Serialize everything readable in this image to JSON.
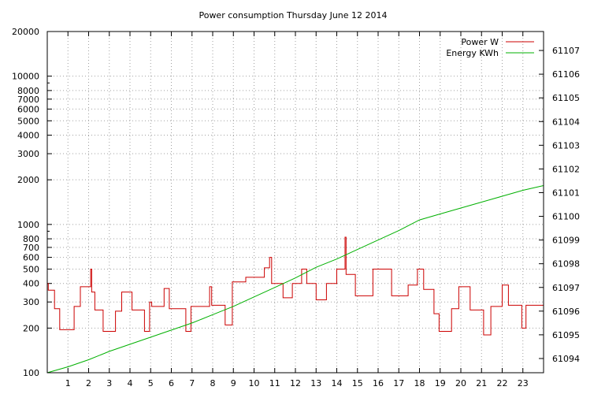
{
  "chart_data": {
    "type": "line",
    "title": "Power consumption Thursday June 12 2014",
    "xlabel": "",
    "ylabel": "",
    "y2label": "",
    "grid": true,
    "legend_position": "top-right",
    "x_range": [
      0,
      24
    ],
    "x_ticks": [
      1,
      2,
      3,
      4,
      5,
      6,
      7,
      8,
      9,
      10,
      11,
      12,
      13,
      14,
      15,
      16,
      17,
      18,
      19,
      20,
      21,
      22,
      23
    ],
    "y_scale": "log",
    "y_range": [
      100,
      20000
    ],
    "y_ticks": [
      100,
      200,
      300,
      400,
      500,
      600,
      700,
      800,
      1000,
      2000,
      3000,
      4000,
      5000,
      6000,
      7000,
      8000,
      10000,
      20000
    ],
    "y2_range": [
      61093.4,
      61107.8
    ],
    "y2_ticks": [
      61094,
      61095,
      61096,
      61097,
      61098,
      61099,
      61100,
      61101,
      61102,
      61103,
      61104,
      61105,
      61106,
      61107
    ],
    "series": [
      {
        "name": "Power W",
        "axis": "y",
        "color": "#cc0000",
        "step": true,
        "points": [
          [
            0,
            400
          ],
          [
            0.05,
            360
          ],
          [
            0.35,
            270
          ],
          [
            0.6,
            195
          ],
          [
            1.3,
            280
          ],
          [
            1.6,
            380
          ],
          [
            2.1,
            500
          ],
          [
            2.15,
            350
          ],
          [
            2.3,
            265
          ],
          [
            2.7,
            190
          ],
          [
            3.3,
            260
          ],
          [
            3.6,
            350
          ],
          [
            4.1,
            265
          ],
          [
            4.7,
            190
          ],
          [
            4.95,
            300
          ],
          [
            5.05,
            280
          ],
          [
            5.65,
            370
          ],
          [
            5.9,
            270
          ],
          [
            6.7,
            190
          ],
          [
            6.95,
            280
          ],
          [
            7.85,
            380
          ],
          [
            7.95,
            285
          ],
          [
            8.6,
            210
          ],
          [
            8.95,
            410
          ],
          [
            9.6,
            440
          ],
          [
            10.5,
            510
          ],
          [
            10.75,
            600
          ],
          [
            10.85,
            400
          ],
          [
            11.4,
            320
          ],
          [
            11.85,
            400
          ],
          [
            12.3,
            500
          ],
          [
            12.55,
            400
          ],
          [
            13.0,
            310
          ],
          [
            13.5,
            400
          ],
          [
            14.0,
            500
          ],
          [
            14.4,
            820
          ],
          [
            14.45,
            460
          ],
          [
            14.9,
            330
          ],
          [
            15.75,
            500
          ],
          [
            16.65,
            330
          ],
          [
            17.45,
            390
          ],
          [
            17.9,
            500
          ],
          [
            18.2,
            365
          ],
          [
            18.7,
            250
          ],
          [
            18.95,
            190
          ],
          [
            19.55,
            270
          ],
          [
            19.9,
            380
          ],
          [
            20.45,
            265
          ],
          [
            21.1,
            180
          ],
          [
            21.45,
            280
          ],
          [
            22.0,
            390
          ],
          [
            22.3,
            285
          ],
          [
            22.95,
            200
          ],
          [
            23.15,
            285
          ],
          [
            23.95,
            285
          ]
        ]
      },
      {
        "name": "Energy KWh",
        "axis": "y2",
        "color": "#00b000",
        "step": false,
        "points": [
          [
            0,
            61093.4
          ],
          [
            1,
            61093.65
          ],
          [
            2,
            61093.95
          ],
          [
            3,
            61094.3
          ],
          [
            4,
            61094.6
          ],
          [
            5,
            61094.9
          ],
          [
            6,
            61095.2
          ],
          [
            7,
            61095.5
          ],
          [
            8,
            61095.85
          ],
          [
            9,
            61096.2
          ],
          [
            10,
            61096.6
          ],
          [
            11,
            61097.0
          ],
          [
            12,
            61097.4
          ],
          [
            13,
            61097.85
          ],
          [
            14,
            61098.2
          ],
          [
            15,
            61098.6
          ],
          [
            16,
            61099.0
          ],
          [
            17,
            61099.4
          ],
          [
            18,
            61099.85
          ],
          [
            19,
            61100.1
          ],
          [
            20,
            61100.35
          ],
          [
            21,
            61100.6
          ],
          [
            22,
            61100.85
          ],
          [
            23,
            61101.1
          ],
          [
            24,
            61101.3
          ]
        ]
      }
    ]
  }
}
